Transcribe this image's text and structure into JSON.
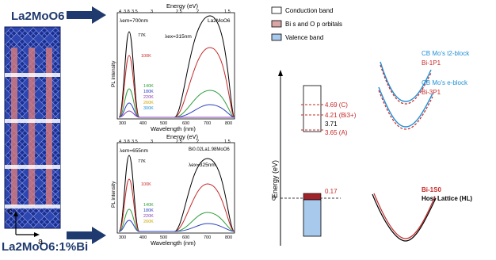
{
  "left": {
    "top_label": "La2MoO6",
    "bottom_label": "La2MoO6:1%Bi",
    "axis_c": "c",
    "axis_a": "a"
  },
  "plots": {
    "energy_title": "Energy (eV)",
    "xlabel": "Wavelength (nm)",
    "ylabel": "PL intensity",
    "energy_ticks": [
      "4",
      "3.8",
      "3.5",
      "3",
      "2.5",
      "2",
      "1.5"
    ],
    "x_ticks": [
      "300",
      "400",
      "500",
      "600",
      "700",
      "800"
    ],
    "top": {
      "lambda_em": "λem=700nm",
      "lambda_ex": "λex=315nm",
      "compound": "La2MoO6",
      "temps": [
        "77K",
        "100K",
        "140K",
        "180K",
        "220K",
        "260K",
        "300K"
      ]
    },
    "bottom": {
      "lambda_em": "λem=655nm",
      "lambda_ex": "λex=325nm",
      "compound": "Bi0.02La1.98MoO6",
      "temps": [
        "77K",
        "100K",
        "140K",
        "180K",
        "220K",
        "260K"
      ]
    }
  },
  "legend": {
    "items": [
      "Conduction band",
      "Bi s and O p orbitals",
      "Valence band"
    ]
  },
  "energy_diagram": {
    "ylabel": "Energy (eV)",
    "zero": "0",
    "zero_level_value": "0.17",
    "levels": [
      "4.69 (C)",
      "4.21 (Bi3+)",
      "3.71",
      "3.65 (A)"
    ]
  },
  "curves": {
    "t2_label": "CB Mo's t2-block",
    "bi1p1": "Bi-1P1",
    "e_label": "CB Mo's e-block",
    "bi3p1": "Bi-3P1",
    "bi1s0": "Bi-1S0",
    "host": "Host Lattice (HL)"
  },
  "colors": {
    "navy": "#1f3a6e",
    "red": "#c62828",
    "blue": "#1f8fd6",
    "green": "#2e9e3a",
    "cb_fill": "#ffffff",
    "bi_fill": "#d9a5a5",
    "vb_fill": "#a8c8ec"
  }
}
